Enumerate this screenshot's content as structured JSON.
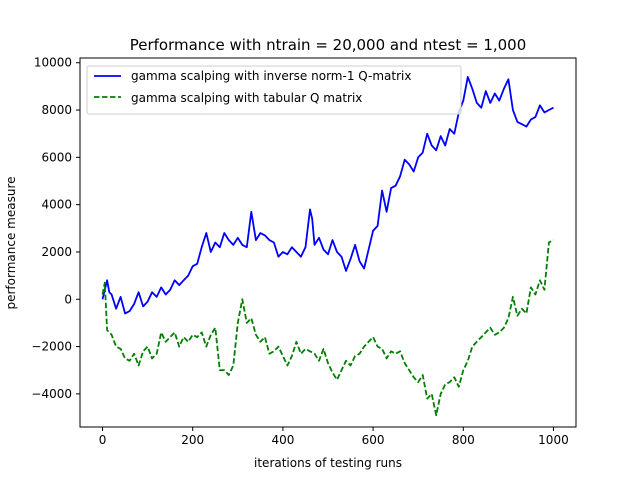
{
  "chart_data": {
    "type": "line",
    "title": "Performance with ntrain = 20,000 and ntest = 1,000",
    "xlabel": "iterations of testing runs",
    "ylabel": "performance measure",
    "xlim": [
      -50,
      1050
    ],
    "ylim": [
      -5400,
      10200
    ],
    "x_ticks": [
      0,
      200,
      400,
      600,
      800,
      1000
    ],
    "y_ticks": [
      -4000,
      -2000,
      0,
      2000,
      4000,
      6000,
      8000,
      10000
    ],
    "grid": false,
    "legend_position": "upper-left",
    "series": [
      {
        "name": "gamma scalping with inverse norm-1 Q-matrix",
        "color": "#0000ff",
        "style": "solid",
        "x": [
          0,
          5,
          10,
          15,
          20,
          30,
          40,
          50,
          60,
          70,
          80,
          90,
          100,
          110,
          120,
          130,
          140,
          150,
          160,
          170,
          180,
          190,
          200,
          210,
          220,
          230,
          240,
          250,
          260,
          270,
          280,
          290,
          300,
          310,
          320,
          330,
          340,
          350,
          360,
          370,
          380,
          390,
          400,
          410,
          420,
          430,
          440,
          450,
          460,
          465,
          470,
          480,
          490,
          500,
          510,
          520,
          530,
          540,
          550,
          560,
          570,
          580,
          590,
          600,
          610,
          620,
          630,
          640,
          650,
          660,
          670,
          680,
          690,
          700,
          710,
          720,
          730,
          740,
          750,
          760,
          770,
          780,
          790,
          800,
          810,
          820,
          830,
          840,
          850,
          860,
          870,
          880,
          890,
          900,
          910,
          920,
          930,
          940,
          950,
          960,
          970,
          980,
          990,
          1000
        ],
        "y": [
          0,
          400,
          800,
          300,
          200,
          -400,
          100,
          -600,
          -500,
          -200,
          300,
          -300,
          -100,
          300,
          100,
          500,
          200,
          400,
          800,
          600,
          800,
          1000,
          1400,
          1500,
          2200,
          2800,
          2000,
          2400,
          2200,
          2800,
          2500,
          2300,
          2600,
          2300,
          2200,
          3700,
          2500,
          2800,
          2700,
          2500,
          2400,
          1800,
          2000,
          1900,
          2200,
          2000,
          1800,
          2200,
          3800,
          3400,
          2300,
          2600,
          2100,
          1900,
          2500,
          2000,
          1800,
          1200,
          1700,
          2300,
          1600,
          1300,
          2100,
          2900,
          3100,
          4600,
          3700,
          4700,
          4800,
          5200,
          5900,
          5700,
          5400,
          6000,
          6200,
          7000,
          6500,
          6300,
          6900,
          6500,
          7200,
          7000,
          7900,
          8400,
          9400,
          8900,
          8300,
          8100,
          8800,
          8300,
          8700,
          8400,
          8900,
          9300,
          8000,
          7500,
          7400,
          7300,
          7600,
          7700,
          8200,
          7900,
          8000,
          8100
        ]
      },
      {
        "name": "gamma scalping with tabular Q matrix",
        "color": "#008000",
        "style": "dashed",
        "x": [
          0,
          5,
          10,
          15,
          20,
          30,
          40,
          50,
          60,
          70,
          80,
          90,
          100,
          110,
          120,
          130,
          140,
          150,
          160,
          170,
          180,
          190,
          200,
          210,
          220,
          230,
          240,
          250,
          260,
          270,
          280,
          290,
          300,
          310,
          320,
          330,
          340,
          350,
          360,
          370,
          380,
          390,
          400,
          410,
          420,
          430,
          440,
          450,
          460,
          470,
          480,
          490,
          500,
          510,
          520,
          530,
          540,
          550,
          560,
          570,
          580,
          590,
          600,
          610,
          620,
          630,
          640,
          650,
          660,
          670,
          680,
          690,
          700,
          710,
          720,
          730,
          740,
          750,
          760,
          770,
          780,
          790,
          800,
          810,
          820,
          830,
          840,
          850,
          860,
          870,
          880,
          890,
          900,
          910,
          920,
          930,
          940,
          950,
          960,
          970,
          980,
          990,
          1000
        ],
        "y": [
          200,
          700,
          -1300,
          -1400,
          -1500,
          -2000,
          -2100,
          -2500,
          -2600,
          -2300,
          -2800,
          -2200,
          -2000,
          -2500,
          -2300,
          -1400,
          -1800,
          -1600,
          -1400,
          -2000,
          -1600,
          -1800,
          -1500,
          -1600,
          -1400,
          -2000,
          -1500,
          -1200,
          -3000,
          -3000,
          -3200,
          -2800,
          -1000,
          0,
          -1000,
          -800,
          -1500,
          -1800,
          -1600,
          -2300,
          -2200,
          -2000,
          -2400,
          -2800,
          -2400,
          -1800,
          -2300,
          -2100,
          -2200,
          -2300,
          -2600,
          -2100,
          -2700,
          -3100,
          -3400,
          -3000,
          -2600,
          -2800,
          -2400,
          -2300,
          -2000,
          -1800,
          -1600,
          -2000,
          -2100,
          -2500,
          -2200,
          -2300,
          -2200,
          -2700,
          -3000,
          -3300,
          -3500,
          -3200,
          -4200,
          -4000,
          -4900,
          -4000,
          -3600,
          -3500,
          -3300,
          -3700,
          -3000,
          -2600,
          -2000,
          -1800,
          -1600,
          -1400,
          -1200,
          -1500,
          -1400,
          -1200,
          -800,
          100,
          -700,
          -400,
          -600,
          500,
          200,
          800,
          400,
          2400,
          2500
        ]
      }
    ]
  }
}
